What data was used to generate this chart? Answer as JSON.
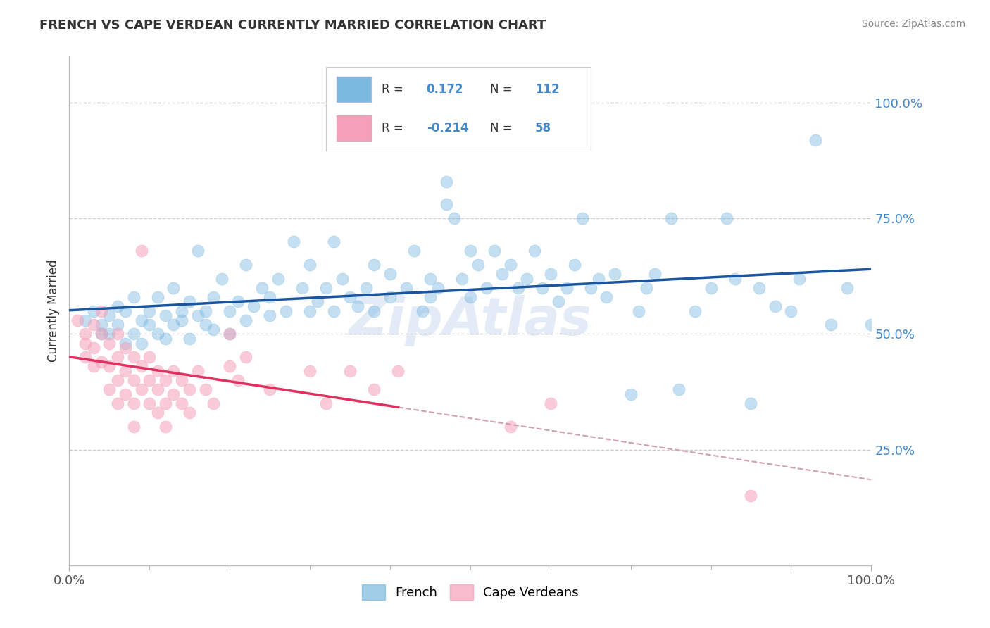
{
  "title": "FRENCH VS CAPE VERDEAN CURRENTLY MARRIED CORRELATION CHART",
  "source": "Source: ZipAtlas.com",
  "ylabel": "Currently Married",
  "ytick_labels": [
    "25.0%",
    "50.0%",
    "75.0%",
    "100.0%"
  ],
  "ytick_values": [
    0.25,
    0.5,
    0.75,
    1.0
  ],
  "xlim": [
    0.0,
    1.0
  ],
  "ylim": [
    0.0,
    1.1
  ],
  "french_color": "#7ab8e0",
  "cape_color": "#f5a0b8",
  "french_line_color": "#1a55a0",
  "cape_line_color": "#e03060",
  "cape_dash_color": "#d0a0b0",
  "accent_color": "#4488cc",
  "french_scatter_x": [
    0.02,
    0.03,
    0.04,
    0.04,
    0.05,
    0.05,
    0.06,
    0.06,
    0.07,
    0.07,
    0.08,
    0.08,
    0.09,
    0.09,
    0.1,
    0.1,
    0.11,
    0.11,
    0.12,
    0.12,
    0.13,
    0.13,
    0.14,
    0.14,
    0.15,
    0.15,
    0.16,
    0.16,
    0.17,
    0.17,
    0.18,
    0.18,
    0.19,
    0.2,
    0.2,
    0.21,
    0.22,
    0.22,
    0.23,
    0.24,
    0.25,
    0.25,
    0.26,
    0.27,
    0.28,
    0.29,
    0.3,
    0.3,
    0.31,
    0.32,
    0.33,
    0.33,
    0.34,
    0.35,
    0.36,
    0.37,
    0.38,
    0.38,
    0.4,
    0.4,
    0.42,
    0.43,
    0.44,
    0.45,
    0.45,
    0.46,
    0.47,
    0.47,
    0.48,
    0.49,
    0.5,
    0.5,
    0.51,
    0.52,
    0.53,
    0.54,
    0.55,
    0.56,
    0.57,
    0.58,
    0.59,
    0.6,
    0.61,
    0.62,
    0.63,
    0.64,
    0.65,
    0.66,
    0.67,
    0.68,
    0.7,
    0.71,
    0.72,
    0.73,
    0.75,
    0.76,
    0.78,
    0.8,
    0.82,
    0.83,
    0.85,
    0.86,
    0.88,
    0.9,
    0.91,
    0.93,
    0.95,
    0.97,
    1.0
  ],
  "french_scatter_y": [
    0.53,
    0.55,
    0.52,
    0.5,
    0.54,
    0.5,
    0.52,
    0.56,
    0.48,
    0.55,
    0.5,
    0.58,
    0.53,
    0.48,
    0.55,
    0.52,
    0.5,
    0.58,
    0.54,
    0.49,
    0.52,
    0.6,
    0.55,
    0.53,
    0.57,
    0.49,
    0.54,
    0.68,
    0.55,
    0.52,
    0.58,
    0.51,
    0.62,
    0.55,
    0.5,
    0.57,
    0.53,
    0.65,
    0.56,
    0.6,
    0.54,
    0.58,
    0.62,
    0.55,
    0.7,
    0.6,
    0.65,
    0.55,
    0.57,
    0.6,
    0.55,
    0.7,
    0.62,
    0.58,
    0.56,
    0.6,
    0.65,
    0.55,
    0.58,
    0.63,
    0.6,
    0.68,
    0.55,
    0.62,
    0.58,
    0.6,
    0.83,
    0.78,
    0.75,
    0.62,
    0.68,
    0.58,
    0.65,
    0.6,
    0.68,
    0.63,
    0.65,
    0.6,
    0.62,
    0.68,
    0.6,
    0.63,
    0.57,
    0.6,
    0.65,
    0.75,
    0.6,
    0.62,
    0.58,
    0.63,
    0.37,
    0.55,
    0.6,
    0.63,
    0.75,
    0.38,
    0.55,
    0.6,
    0.75,
    0.62,
    0.35,
    0.6,
    0.56,
    0.55,
    0.62,
    0.92,
    0.52,
    0.6,
    0.52
  ],
  "cape_scatter_x": [
    0.01,
    0.02,
    0.02,
    0.02,
    0.03,
    0.03,
    0.03,
    0.04,
    0.04,
    0.04,
    0.05,
    0.05,
    0.05,
    0.06,
    0.06,
    0.06,
    0.06,
    0.07,
    0.07,
    0.07,
    0.08,
    0.08,
    0.08,
    0.08,
    0.09,
    0.09,
    0.09,
    0.1,
    0.1,
    0.1,
    0.11,
    0.11,
    0.11,
    0.12,
    0.12,
    0.12,
    0.13,
    0.13,
    0.14,
    0.14,
    0.15,
    0.15,
    0.16,
    0.17,
    0.18,
    0.2,
    0.2,
    0.21,
    0.22,
    0.25,
    0.3,
    0.32,
    0.35,
    0.38,
    0.41,
    0.55,
    0.6,
    0.85
  ],
  "cape_scatter_y": [
    0.53,
    0.5,
    0.48,
    0.45,
    0.52,
    0.47,
    0.43,
    0.55,
    0.5,
    0.44,
    0.48,
    0.43,
    0.38,
    0.5,
    0.45,
    0.4,
    0.35,
    0.47,
    0.42,
    0.37,
    0.45,
    0.4,
    0.35,
    0.3,
    0.68,
    0.43,
    0.38,
    0.45,
    0.4,
    0.35,
    0.42,
    0.38,
    0.33,
    0.4,
    0.35,
    0.3,
    0.42,
    0.37,
    0.4,
    0.35,
    0.38,
    0.33,
    0.42,
    0.38,
    0.35,
    0.5,
    0.43,
    0.4,
    0.45,
    0.38,
    0.42,
    0.35,
    0.42,
    0.38,
    0.42,
    0.3,
    0.35,
    0.15
  ]
}
